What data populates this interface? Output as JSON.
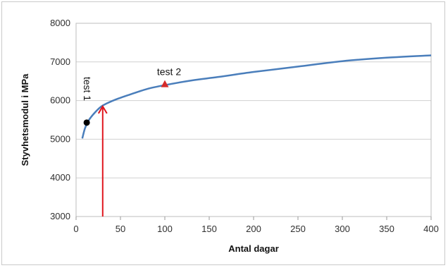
{
  "chart_data": {
    "type": "line",
    "title": "",
    "xlabel": "Antal dagar",
    "ylabel": "Styvhetsmodul i MPa",
    "xlim": [
      0,
      400
    ],
    "ylim": [
      3000,
      8000
    ],
    "x_ticks": [
      0,
      50,
      100,
      150,
      200,
      250,
      300,
      350,
      400
    ],
    "y_ticks": [
      3000,
      4000,
      5000,
      6000,
      7000,
      8000
    ],
    "grid": "horizontal",
    "legend": "none",
    "colors": {
      "line": "#4a7ebb",
      "marker_test1": "#000000",
      "marker_test2": "#d62b2b",
      "arrow": "#e0161e",
      "grid": "#d0d0d0"
    },
    "series": [
      {
        "name": "",
        "x": [
          7,
          10,
          14,
          20,
          28,
          35,
          45,
          60,
          80,
          100,
          130,
          160,
          200,
          250,
          300,
          350,
          400
        ],
        "y": [
          5020,
          5280,
          5480,
          5660,
          5840,
          5930,
          6030,
          6150,
          6300,
          6400,
          6520,
          6610,
          6740,
          6880,
          7020,
          7110,
          7170
        ]
      }
    ],
    "points": [
      {
        "label": "test 1",
        "x": 12,
        "y": 5430,
        "marker": "circle"
      },
      {
        "label": "test 2",
        "x": 100,
        "y": 6420,
        "marker": "triangle"
      }
    ],
    "arrow": {
      "x": 30,
      "y_from": 3000,
      "y_to": 5850
    }
  }
}
